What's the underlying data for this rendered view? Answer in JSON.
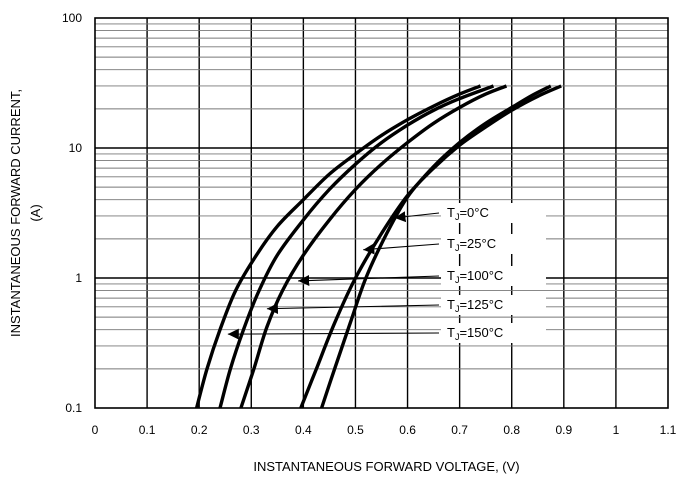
{
  "chart_data": {
    "type": "line",
    "xlabel": "INSTANTANEOUS FORWARD VOLTAGE,  (V)",
    "ylabel_line1": "INSTANTANEOUS FORWARD CURRENT,",
    "ylabel_line2": "(A)",
    "xlim": [
      0,
      1.1
    ],
    "ylim": [
      0.1,
      100
    ],
    "y_scale": "log",
    "grid": true,
    "x_ticks": [
      0,
      0.1,
      0.2,
      0.3,
      0.4,
      0.5,
      0.6,
      0.7,
      0.8,
      0.9,
      1,
      1.1
    ],
    "x_tick_labels": [
      "0",
      "0.1",
      "0.2",
      "0.3",
      "0.4",
      "0.5",
      "0.6",
      "0.7",
      "0.8",
      "0.9",
      "1",
      "1.1"
    ],
    "y_ticks": [
      0.1,
      1,
      10,
      100
    ],
    "y_tick_labels": [
      "0.1",
      "1",
      "10",
      "100"
    ],
    "series": [
      {
        "label_main": "T",
        "label_sub": "J",
        "label_rest": "=0°C",
        "x": [
          0.395,
          0.425,
          0.46,
          0.5,
          0.55,
          0.6,
          0.65,
          0.7,
          0.75,
          0.8,
          0.85,
          0.895
        ],
        "y": [
          0.1,
          0.2,
          0.45,
          1.0,
          2.2,
          4.3,
          7.0,
          10.5,
          14.5,
          19.5,
          25.0,
          30.0
        ],
        "arrow_at": [
          0.575,
          2.9
        ]
      },
      {
        "label_main": "T",
        "label_sub": "J",
        "label_rest": "=25°C",
        "x": [
          0.435,
          0.46,
          0.49,
          0.52,
          0.56,
          0.6,
          0.65,
          0.7,
          0.75,
          0.8,
          0.84,
          0.875
        ],
        "y": [
          0.1,
          0.2,
          0.45,
          1.0,
          2.2,
          4.2,
          7.2,
          11.0,
          15.5,
          20.5,
          25.5,
          30.0
        ],
        "arrow_at": [
          0.515,
          1.65
        ]
      },
      {
        "label_main": "T",
        "label_sub": "J",
        "label_rest": "=100°C",
        "x": [
          0.28,
          0.305,
          0.33,
          0.36,
          0.4,
          0.45,
          0.5,
          0.55,
          0.6,
          0.65,
          0.7,
          0.75,
          0.79
        ],
        "y": [
          0.1,
          0.2,
          0.42,
          0.8,
          1.5,
          2.8,
          4.8,
          7.5,
          11.0,
          15.5,
          20.5,
          26.0,
          30.0
        ],
        "arrow_at": [
          0.39,
          0.95
        ]
      },
      {
        "label_main": "T",
        "label_sub": "J",
        "label_rest": "=125°C",
        "x": [
          0.24,
          0.26,
          0.285,
          0.315,
          0.35,
          0.4,
          0.45,
          0.5,
          0.55,
          0.6,
          0.65,
          0.7,
          0.765
        ],
        "y": [
          0.1,
          0.2,
          0.4,
          0.8,
          1.5,
          2.8,
          4.8,
          7.5,
          11.0,
          15.0,
          19.5,
          24.0,
          30.0
        ],
        "arrow_at": [
          0.33,
          0.58
        ]
      },
      {
        "label_main": "T",
        "label_sub": "J",
        "label_rest": "=150°C",
        "x": [
          0.195,
          0.215,
          0.24,
          0.27,
          0.31,
          0.35,
          0.4,
          0.45,
          0.5,
          0.55,
          0.6,
          0.65,
          0.7,
          0.74
        ],
        "y": [
          0.1,
          0.2,
          0.4,
          0.8,
          1.5,
          2.5,
          4.0,
          6.3,
          9.0,
          12.5,
          16.5,
          21.0,
          26.0,
          30.0
        ],
        "arrow_at": [
          0.255,
          0.37
        ]
      }
    ]
  }
}
